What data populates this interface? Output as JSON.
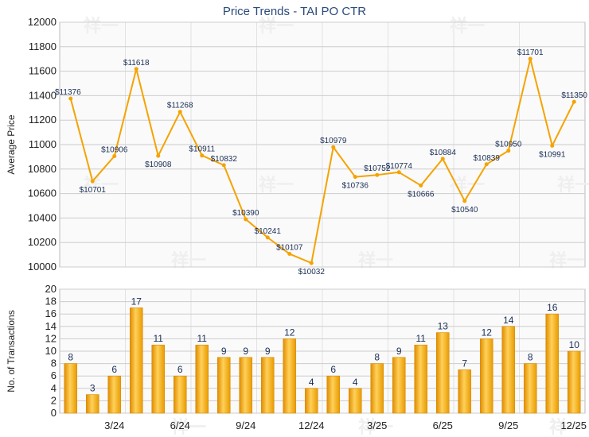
{
  "title": "Price Trends - TAI PO CTR",
  "watermark": "祥一",
  "colors": {
    "line": "#f5a300",
    "bar": "#f5a300",
    "grid": "#cccccc",
    "plot_bg": "#fafafa",
    "label": "#1a2e55"
  },
  "chart_data": [
    {
      "type": "line",
      "title": "Price Trends - TAI PO CTR",
      "ylabel": "Average Price",
      "ylim": [
        10000,
        12000
      ],
      "yticks": [
        10000,
        10200,
        10400,
        10600,
        10800,
        11000,
        11200,
        11400,
        11600,
        11800,
        12000
      ],
      "values": [
        11376,
        10701,
        10906,
        11618,
        10908,
        11268,
        10911,
        10832,
        10390,
        10241,
        10107,
        10032,
        10979,
        10736,
        10752,
        10774,
        10666,
        10884,
        10540,
        10839,
        10950,
        11701,
        10991,
        11350
      ],
      "labels": [
        "$11376",
        "$10701",
        "$10906",
        "$11618",
        "$10908",
        "$11268",
        "$10911",
        "$10832",
        "$10390",
        "$10241",
        "$10107",
        "$10032",
        "$10979",
        "$10736",
        "$10752",
        "$10774",
        "$10666",
        "$10884",
        "$10540",
        "$10839",
        "$10950",
        "$11701",
        "$10991",
        "$11350"
      ]
    },
    {
      "type": "bar",
      "ylabel": "No. of Transactions",
      "ylim": [
        0,
        20
      ],
      "yticks": [
        0,
        2,
        4,
        6,
        8,
        10,
        12,
        14,
        16,
        18,
        20
      ],
      "values": [
        8,
        3,
        6,
        17,
        11,
        6,
        11,
        9,
        9,
        9,
        12,
        4,
        6,
        4,
        8,
        9,
        11,
        13,
        7,
        12,
        14,
        8,
        16,
        10
      ],
      "xtick_labels": [
        "3/24",
        "6/24",
        "9/24",
        "12/24",
        "3/25",
        "6/25",
        "9/25",
        "12/25"
      ],
      "xtick_index": [
        2,
        5,
        8,
        11,
        14,
        17,
        20,
        23
      ]
    }
  ]
}
